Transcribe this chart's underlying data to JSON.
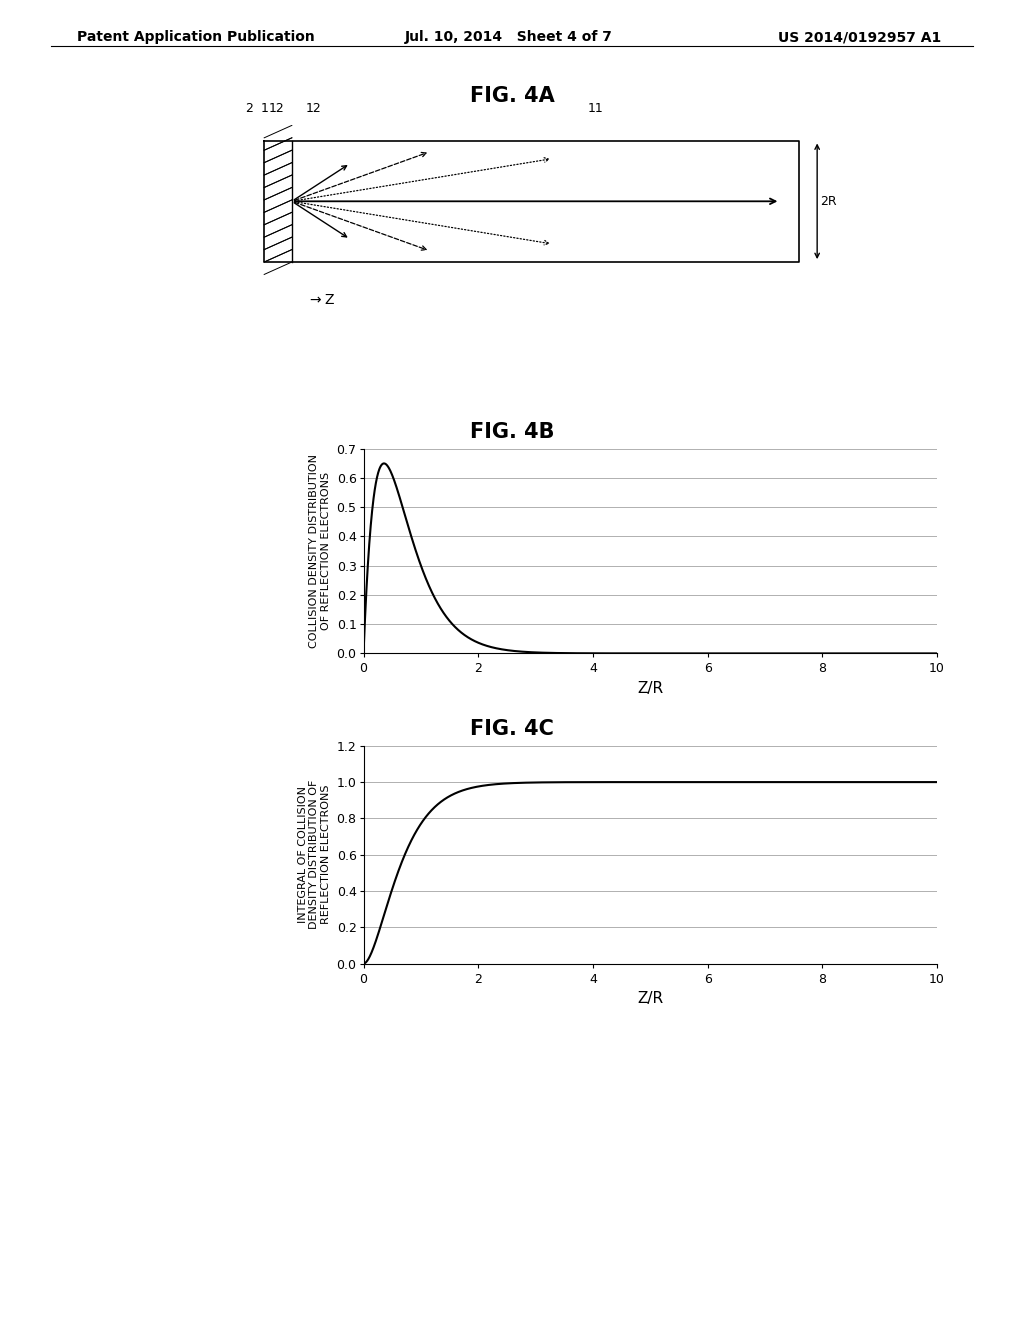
{
  "header_left": "Patent Application Publication",
  "header_center": "Jul. 10, 2014   Sheet 4 of 7",
  "header_right": "US 2014/0192957 A1",
  "fig4a_title": "FIG. 4A",
  "fig4b_title": "FIG. 4B",
  "fig4c_title": "FIG. 4C",
  "fig4b_ylabel_line1": "COLLISION DENSITY DISTRIBUTION",
  "fig4b_ylabel_line2": "OF REFLECTION ELECTRONS",
  "fig4b_xlabel": "Z/R",
  "fig4b_xlim": [
    0,
    10
  ],
  "fig4b_ylim": [
    0,
    0.7
  ],
  "fig4b_xticks": [
    0,
    2,
    4,
    6,
    8,
    10
  ],
  "fig4b_yticks": [
    0,
    0.1,
    0.2,
    0.3,
    0.4,
    0.5,
    0.6,
    0.7
  ],
  "fig4c_ylabel_line1": "INTEGRAL OF COLLISION",
  "fig4c_ylabel_line2": "DENSITY DISTRIBUTION OF",
  "fig4c_ylabel_line3": "REFLECTION ELECTRONS",
  "fig4c_xlabel": "Z/R",
  "fig4c_xlim": [
    0,
    10
  ],
  "fig4c_ylim": [
    0,
    1.2
  ],
  "fig4c_xticks": [
    0,
    2,
    4,
    6,
    8,
    10
  ],
  "fig4c_yticks": [
    0,
    0.2,
    0.4,
    0.6,
    0.8,
    1.0,
    1.2
  ],
  "bg_color": "#ffffff",
  "line_color": "#000000",
  "grid_color": "#b0b0b0",
  "label_fontsize": 8,
  "tick_fontsize": 9,
  "title_fontsize": 15,
  "header_fontsize": 10,
  "curve_b": 3.5,
  "curve_A": 1.0
}
